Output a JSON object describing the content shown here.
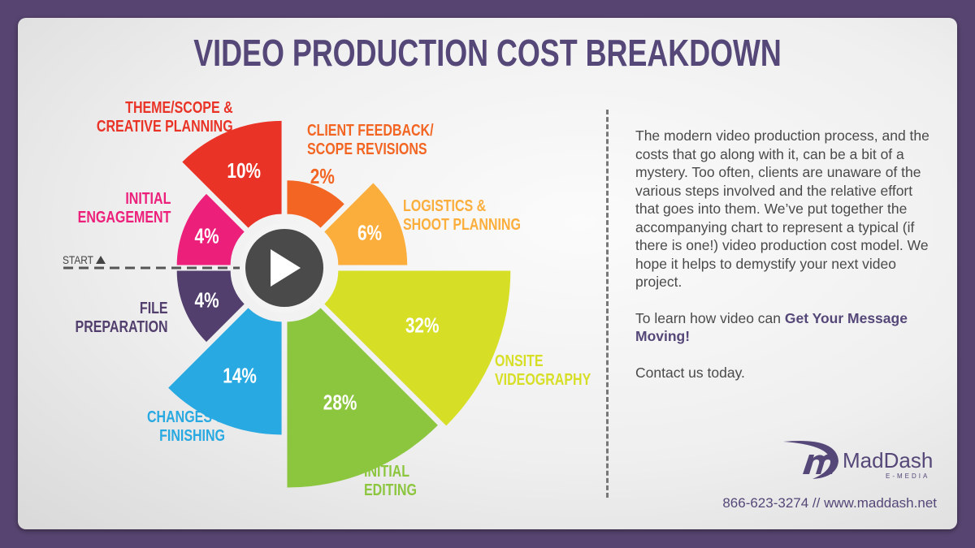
{
  "title": "VIDEO PRODUCTION COST BREAKDOWN",
  "chart_data": {
    "type": "polar-area",
    "start_label": "START",
    "center_icon": "play-icon",
    "segments": [
      {
        "label_lines": [
          "INITIAL",
          "ENGAGEMENT"
        ],
        "value": 4,
        "display": "4%",
        "color": "#ec1f7b"
      },
      {
        "label_lines": [
          "THEME/SCOPE &",
          "CREATIVE PLANNING"
        ],
        "value": 10,
        "display": "10%",
        "color": "#ea3327"
      },
      {
        "label_lines": [
          "CLIENT FEEDBACK/",
          "SCOPE REVISIONS"
        ],
        "value": 2,
        "display": "2%",
        "color": "#f26522"
      },
      {
        "label_lines": [
          "LOGISTICS &",
          "SHOOT PLANNING"
        ],
        "value": 6,
        "display": "6%",
        "color": "#fbae3c"
      },
      {
        "label_lines": [
          "ONSITE",
          "VIDEOGRAPHY"
        ],
        "value": 32,
        "display": "32%",
        "color": "#d6df26"
      },
      {
        "label_lines": [
          "INITIAL",
          "EDITING"
        ],
        "value": 28,
        "display": "28%",
        "color": "#8cc63f"
      },
      {
        "label_lines": [
          "CHANGES &",
          "FINISHING"
        ],
        "value": 14,
        "display": "14%",
        "color": "#29a9e1"
      },
      {
        "label_lines": [
          "FILE",
          "PREPARATION"
        ],
        "value": 4,
        "display": "4%",
        "color": "#523f6d"
      }
    ]
  },
  "description": {
    "paragraph1": "The modern video production process, and the costs that go along with it, can be a bit of a mystery. Too often, clients are unaware of the various steps involved and the relative effort that goes into them. We’ve put together the accompanying chart to represent a typical (if there is one!) video production cost model. We hope it helps to demystify your next video project.",
    "paragraph2_prefix": "To learn how video can ",
    "paragraph2_bold": "Get Your Message Moving!",
    "paragraph3": "Contact us today."
  },
  "logo": {
    "name": "MadDash",
    "sub": "E-MEDIA"
  },
  "contact": "866-623-3274  //  www.maddash.net",
  "colors": {
    "background": "#574470",
    "brand": "#554778",
    "play": "#4a4a4a"
  }
}
